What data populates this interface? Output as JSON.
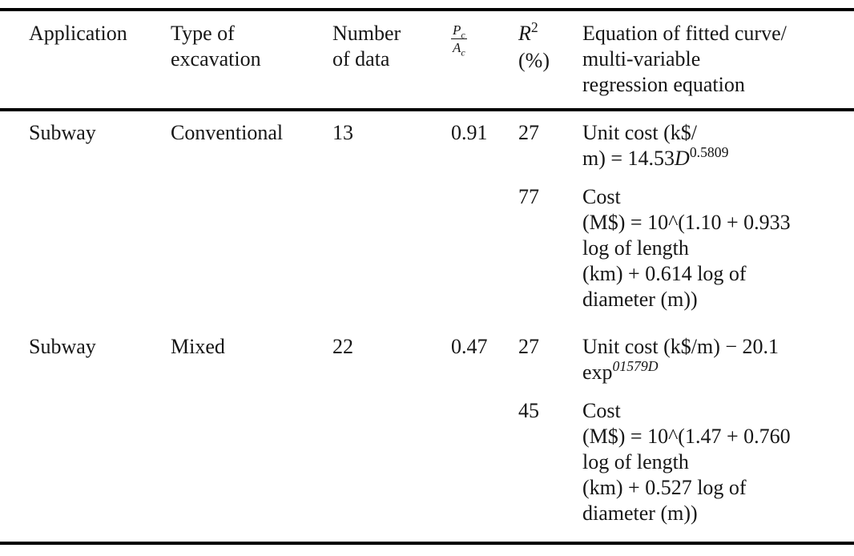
{
  "page": {
    "background": "#ffffff",
    "text_color": "#161616",
    "rule_color": "#000000"
  },
  "header": {
    "application": {
      "lines": [
        [
          {
            "t": "Application"
          }
        ]
      ]
    },
    "type_of_excavation": {
      "lines": [
        [
          {
            "t": "Type of"
          }
        ],
        [
          {
            "t": "excavation"
          }
        ]
      ]
    },
    "number_of_data": {
      "lines": [
        [
          {
            "t": "Number"
          }
        ],
        [
          {
            "t": "of data"
          }
        ]
      ]
    },
    "ratio": {
      "num_base": "P",
      "num_sub": "c",
      "den_base": "A",
      "den_sub": "c"
    },
    "r_squared": {
      "lines": [
        [
          {
            "t": "R",
            "s": "italic"
          },
          {
            "t": "2",
            "s": "sup"
          }
        ],
        [
          {
            "t": "(%)"
          }
        ]
      ]
    },
    "equation": {
      "lines": [
        [
          {
            "t": "Equation of fitted curve/"
          }
        ],
        [
          {
            "t": "multi-variable"
          }
        ],
        [
          {
            "t": "regression equation"
          }
        ]
      ]
    }
  },
  "rows": [
    {
      "application": "Subway",
      "type": "Conventional",
      "n_data": "13",
      "pc_ac": "0.91",
      "entries": [
        {
          "r2": "27",
          "lines": [
            [
              {
                "t": "Unit cost (k$/"
              }
            ],
            [
              {
                "t": "m) = 14.53"
              },
              {
                "t": "D",
                "s": "italic"
              },
              {
                "t": "0.5809",
                "s": "sup"
              }
            ]
          ]
        },
        {
          "r2": "77",
          "lines": [
            [
              {
                "t": "Cost"
              }
            ],
            [
              {
                "t": "(M$) = 10^(1.10 + 0.933"
              }
            ],
            [
              {
                "t": "log of length"
              }
            ],
            [
              {
                "t": "(km) + 0.614 log of"
              }
            ],
            [
              {
                "t": "diameter (m))"
              }
            ]
          ]
        }
      ]
    },
    {
      "application": "Subway",
      "type": "Mixed",
      "n_data": "22",
      "pc_ac": "0.47",
      "entries": [
        {
          "r2": "27",
          "lines": [
            [
              {
                "t": "Unit cost (k$/m) − 20.1"
              }
            ],
            [
              {
                "t": "exp"
              },
              {
                "t": "01579D",
                "s": "sup italic"
              }
            ]
          ]
        },
        {
          "r2": "45",
          "lines": [
            [
              {
                "t": "Cost"
              }
            ],
            [
              {
                "t": "(M$) = 10^(1.47 + 0.760"
              }
            ],
            [
              {
                "t": "log of length"
              }
            ],
            [
              {
                "t": "(km) + 0.527 log of"
              }
            ],
            [
              {
                "t": "diameter (m))"
              }
            ]
          ]
        }
      ]
    }
  ]
}
